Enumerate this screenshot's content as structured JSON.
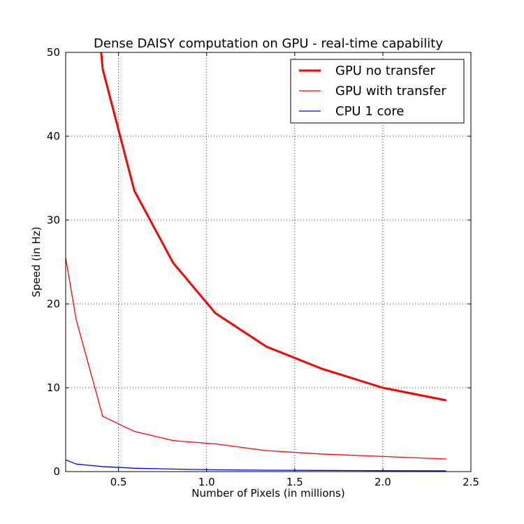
{
  "chart_data": {
    "type": "line",
    "title": "Dense DAISY computation on GPU - real-time capability",
    "xlabel": "Number of Pixels (in millions)",
    "ylabel": "Speed (in Hz)",
    "xlim": [
      0.2,
      2.5
    ],
    "ylim": [
      0,
      50
    ],
    "xticks": [
      0.5,
      1.0,
      1.5,
      2.0,
      2.5
    ],
    "xtick_labels": [
      "0.5",
      "1.0",
      "1.5",
      "2.0",
      "2.5"
    ],
    "yticks": [
      0,
      10,
      20,
      30,
      40,
      50
    ],
    "ytick_labels": [
      "0",
      "10",
      "20",
      "30",
      "40",
      "50"
    ],
    "grid": true,
    "legend_position": "top-right",
    "series": [
      {
        "name": "GPU no transfer",
        "color": "#ff0000",
        "line_weight": "thick",
        "x": [
          0.38,
          0.41,
          0.59,
          0.81,
          1.05,
          1.34,
          1.65,
          2.0,
          2.36
        ],
        "y": [
          55.0,
          48.0,
          33.5,
          24.9,
          18.9,
          14.9,
          12.3,
          10.0,
          8.5
        ]
      },
      {
        "name": "GPU with transfer",
        "color": "#ff0000",
        "line_weight": "thin",
        "x": [
          0.2,
          0.26,
          0.41,
          0.59,
          0.81,
          1.05,
          1.34,
          1.65,
          2.0,
          2.36
        ],
        "y": [
          25.5,
          18.1,
          6.6,
          4.8,
          3.7,
          3.3,
          2.5,
          2.1,
          1.8,
          1.5
        ]
      },
      {
        "name": "CPU 1 core",
        "color": "#0000ff",
        "line_weight": "thin",
        "x": [
          0.2,
          0.26,
          0.41,
          0.59,
          0.81,
          1.05,
          1.34,
          1.65,
          2.0,
          2.36
        ],
        "y": [
          1.4,
          0.9,
          0.6,
          0.4,
          0.3,
          0.22,
          0.17,
          0.14,
          0.11,
          0.09
        ]
      }
    ]
  }
}
